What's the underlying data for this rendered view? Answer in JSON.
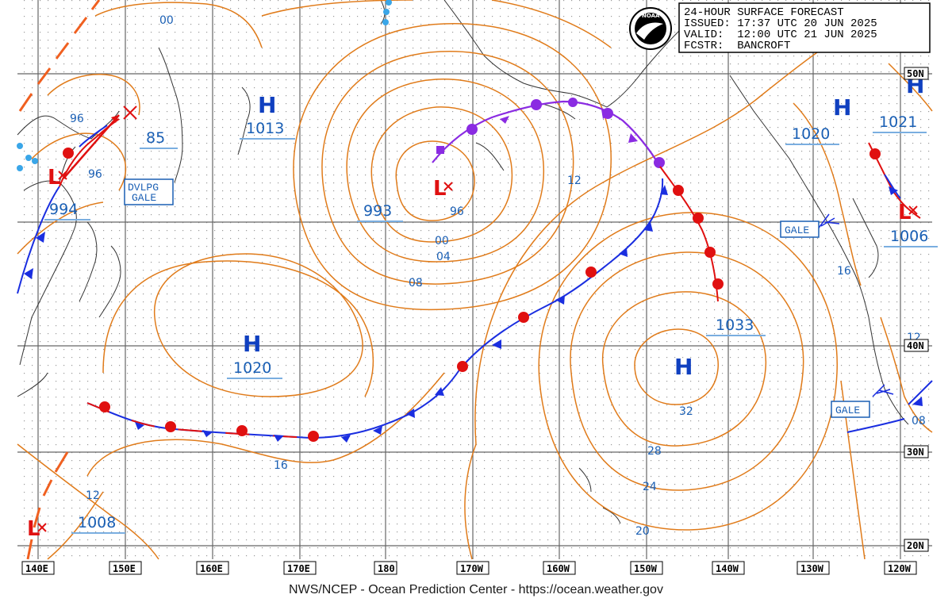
{
  "header": {
    "title": "24-HOUR SURFACE FORECAST",
    "issued": "ISSUED: 17:37 UTC 20 JUN 2025",
    "valid": "VALID:  12:00 UTC 21 JUN 2025",
    "forecaster": "FCSTR:  BANCROFT",
    "logo_text": "NOAA"
  },
  "credit": "NWS/NCEP - Ocean Prediction Center - https://ocean.weather.gov",
  "colors": {
    "isobar": "#e07b1a",
    "high": "#1040c0",
    "low": "#e01010",
    "warm_front": "#e01010",
    "cold_front": "#1a2ee0",
    "occluded_front": "#8a2be2",
    "label_text": "#1a5fb4",
    "grid": "#555555"
  },
  "longitude_labels": [
    "140E",
    "150E",
    "160E",
    "170E",
    "180",
    "170W",
    "160W",
    "150W",
    "140W",
    "130W",
    "120W"
  ],
  "latitude_labels": [
    "50N",
    "40N",
    "30N",
    "20N"
  ],
  "pressure_centers": [
    {
      "type": "H",
      "value": "1013"
    },
    {
      "type": "H",
      "value": "1020"
    },
    {
      "type": "H",
      "value": "1033"
    },
    {
      "type": "H",
      "value": "1020"
    },
    {
      "type": "H",
      "value": "1021"
    },
    {
      "type": "L",
      "value": "994"
    },
    {
      "type": "L",
      "value": "993"
    },
    {
      "type": "L",
      "value": "1006"
    },
    {
      "type": "L",
      "value": "1008"
    },
    {
      "type": "L",
      "value": "85"
    }
  ],
  "warnings": [
    "DVLPG GALE",
    "GALE",
    "GALE"
  ],
  "isobar_labels": [
    "00",
    "96",
    "96",
    "96",
    "00",
    "04",
    "08",
    "12",
    "16",
    "16",
    "12",
    "32",
    "28",
    "24",
    "20",
    "12",
    "08"
  ]
}
